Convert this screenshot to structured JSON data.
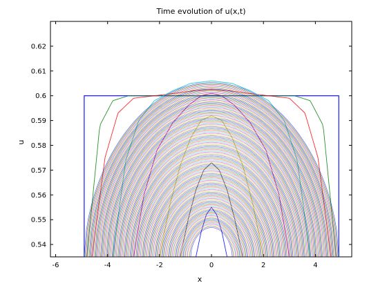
{
  "chart_data": {
    "type": "line",
    "title": "Time evolution of u(x,t)",
    "xlabel": "x",
    "ylabel": "u",
    "xlim": [
      -6.2,
      5.4
    ],
    "ylim": [
      0.535,
      0.63
    ],
    "x_ticks": [
      -6,
      -4,
      -2,
      0,
      2,
      4
    ],
    "y_ticks": [
      0.54,
      0.55,
      0.56,
      0.57,
      0.58,
      0.59,
      0.6,
      0.61,
      0.62
    ],
    "x_tick_labels": [
      "-6",
      "-4",
      "-2",
      "0",
      "2",
      "4"
    ],
    "y_tick_labels": [
      "0.54",
      "0.55",
      "0.56",
      "0.57",
      "0.58",
      "0.59",
      "0.6",
      "0.61",
      "0.62"
    ],
    "grid": false,
    "legend": "none",
    "line_colors": [
      "#0000ff",
      "#008000",
      "#ff0000",
      "#00bfbf",
      "#bf00bf",
      "#bfbf00",
      "#404040"
    ],
    "series": [
      {
        "x": [
          -4.9,
          -4.9,
          4.9,
          4.9
        ],
        "y": [
          0.535,
          0.6,
          0.6,
          0.535
        ]
      },
      {
        "x": [
          -4.8,
          -4.3,
          -3.8,
          -3.2,
          -2.4,
          -1.6,
          -0.8,
          0,
          0.8,
          1.6,
          2.4,
          3.2,
          3.8,
          4.3,
          4.8
        ],
        "y": [
          0.535,
          0.588,
          0.598,
          0.6,
          0.6,
          0.6,
          0.6,
          0.6,
          0.6,
          0.6,
          0.6,
          0.6,
          0.598,
          0.588,
          0.535
        ]
      },
      {
        "x": [
          -4.6,
          -4.1,
          -3.6,
          -3.0,
          -2.2,
          -1.4,
          -0.7,
          0,
          0.7,
          1.4,
          2.2,
          3.0,
          3.6,
          4.1,
          4.6
        ],
        "y": [
          0.535,
          0.575,
          0.593,
          0.599,
          0.6,
          0.601,
          0.602,
          0.6025,
          0.602,
          0.601,
          0.6,
          0.599,
          0.593,
          0.575,
          0.535
        ]
      },
      {
        "x": [
          -3.8,
          -3.3,
          -2.8,
          -2.2,
          -1.5,
          -0.8,
          0,
          0.8,
          1.5,
          2.2,
          2.8,
          3.3,
          3.8
        ],
        "y": [
          0.535,
          0.574,
          0.59,
          0.598,
          0.602,
          0.605,
          0.606,
          0.605,
          0.602,
          0.598,
          0.59,
          0.574,
          0.535
        ]
      },
      {
        "x": [
          -3.0,
          -2.6,
          -2.1,
          -1.5,
          -0.9,
          -0.4,
          0,
          0.4,
          0.9,
          1.5,
          2.1,
          2.6,
          3.0
        ],
        "y": [
          0.535,
          0.56,
          0.578,
          0.589,
          0.596,
          0.6,
          0.601,
          0.6,
          0.596,
          0.589,
          0.578,
          0.56,
          0.535
        ]
      },
      {
        "x": [
          -2.0,
          -1.6,
          -1.2,
          -0.8,
          -0.4,
          0,
          0.4,
          0.8,
          1.2,
          1.6,
          2.0
        ],
        "y": [
          0.535,
          0.556,
          0.572,
          0.583,
          0.59,
          0.592,
          0.59,
          0.583,
          0.572,
          0.556,
          0.535
        ]
      },
      {
        "x": [
          -1.2,
          -0.9,
          -0.6,
          -0.3,
          0,
          0.3,
          0.6,
          0.9,
          1.2
        ],
        "y": [
          0.535,
          0.55,
          0.562,
          0.57,
          0.573,
          0.57,
          0.562,
          0.55,
          0.535
        ]
      },
      {
        "x": [
          -0.6,
          -0.4,
          -0.2,
          0,
          0.2,
          0.4,
          0.6
        ],
        "y": [
          0.535,
          0.545,
          0.552,
          0.555,
          0.552,
          0.545,
          0.535
        ]
      }
    ]
  }
}
